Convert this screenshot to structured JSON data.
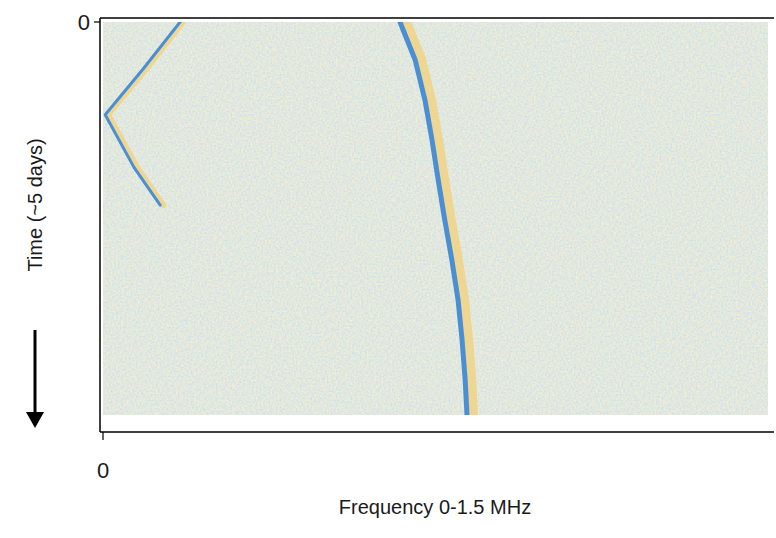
{
  "chart_data": {
    "type": "spectrogram",
    "xlabel": "Frequency 0-1.5 MHz",
    "ylabel": "Time (~5 days)",
    "xlim": [
      0,
      1.5
    ],
    "ylim": [
      0,
      5
    ],
    "xticks": [
      0
    ],
    "yticks": [
      0
    ],
    "series": [
      {
        "color": "#4a8fd4",
        "x": [
          0.67,
          0.704,
          0.726,
          0.742,
          0.756,
          0.771,
          0.787,
          0.801,
          0.81,
          0.817,
          0.821
        ],
        "values": [
          0,
          0.48,
          0.99,
          1.5,
          2.01,
          2.52,
          3.03,
          3.54,
          4.05,
          4.56,
          5.0
        ]
      },
      {
        "color": "#4a8fd4",
        "x": [
          0.174,
          0.09,
          0.005,
          0.07,
          0.129
        ],
        "values": [
          0,
          0.6,
          1.18,
          1.85,
          2.33
        ]
      }
    ]
  }
}
